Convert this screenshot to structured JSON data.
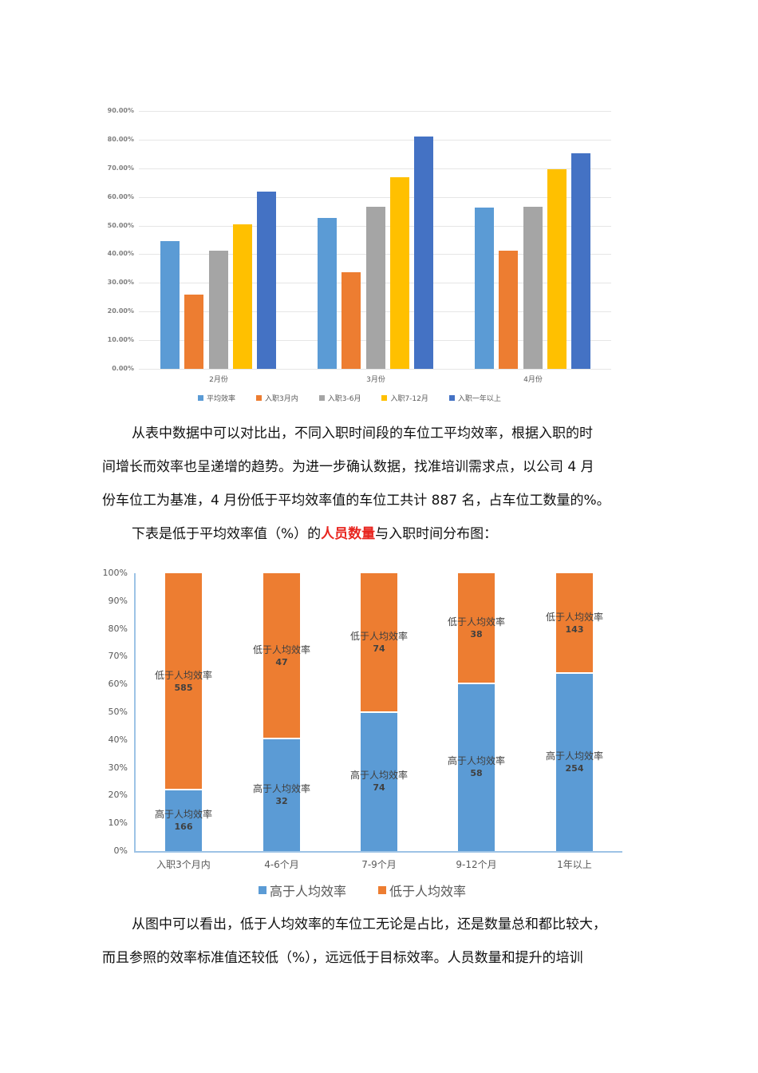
{
  "chart_data": [
    {
      "type": "bar",
      "title": "",
      "xlabel": "",
      "ylabel": "",
      "ylim": [
        0,
        90
      ],
      "yticks": [
        "0.00%",
        "10.00%",
        "20.00%",
        "30.00%",
        "40.00%",
        "50.00%",
        "60.00%",
        "70.00%",
        "80.00%",
        "90.00%"
      ],
      "categories": [
        "2月份",
        "3月份",
        "4月份"
      ],
      "series": [
        {
          "name": "平均效率",
          "color": "#5b9bd5",
          "values": [
            44.6,
            52.6,
            56.2
          ]
        },
        {
          "name": "入职3月内",
          "color": "#ed7d31",
          "values": [
            25.9,
            33.7,
            41.2
          ]
        },
        {
          "name": "入职3-6月",
          "color": "#a5a5a5",
          "values": [
            41.2,
            56.5,
            56.5
          ]
        },
        {
          "name": "入职7-12月",
          "color": "#ffc000",
          "values": [
            50.4,
            66.8,
            69.6
          ]
        },
        {
          "name": "入职一年以上",
          "color": "#4472c4",
          "values": [
            61.8,
            81.0,
            75.2
          ]
        }
      ],
      "grid": true,
      "legend_position": "bottom"
    },
    {
      "type": "bar",
      "stacked": "percent",
      "title": "",
      "xlabel": "",
      "ylabel": "",
      "ylim": [
        0,
        100
      ],
      "yticks": [
        "0%",
        "10%",
        "20%",
        "30%",
        "40%",
        "50%",
        "60%",
        "70%",
        "80%",
        "90%",
        "100%"
      ],
      "categories": [
        "入职3个月内",
        "4-6个月",
        "7-9个月",
        "9-12个月",
        "1年以上"
      ],
      "series": [
        {
          "name": "高于人均效率",
          "color": "#5b9bd5",
          "values": [
            166,
            32,
            74,
            58,
            254
          ]
        },
        {
          "name": "低于人均效率",
          "color": "#ed7d31",
          "values": [
            585,
            47,
            74,
            38,
            143
          ]
        }
      ],
      "grid": false,
      "legend_position": "bottom"
    }
  ],
  "paragraphs": {
    "p1_line1": "从表中数据中可以对比出，不同入职时间段的车位工平均效率，根据入职的时",
    "p1_line2": "间增长而效率也呈递增的趋势。为进一步确认数据，找准培训需求点，以公司 4 月",
    "p1_line3": "份车位工为基准，4 月份低于平均效率值的车位工共计 887 名，占车位工数量的%。",
    "p2_before": "下表是低于平均效率值（%）的",
    "p2_highlight": "人员数量",
    "p2_after": "与入职时间分布图：",
    "p3_line1": "从图中可以看出，低于人均效率的车位工无论是占比，还是数量总和都比较大，",
    "p3_line2": "而且参照的效率标准值还较低（%），远远低于目标效率。人员数量和提升的培训"
  }
}
